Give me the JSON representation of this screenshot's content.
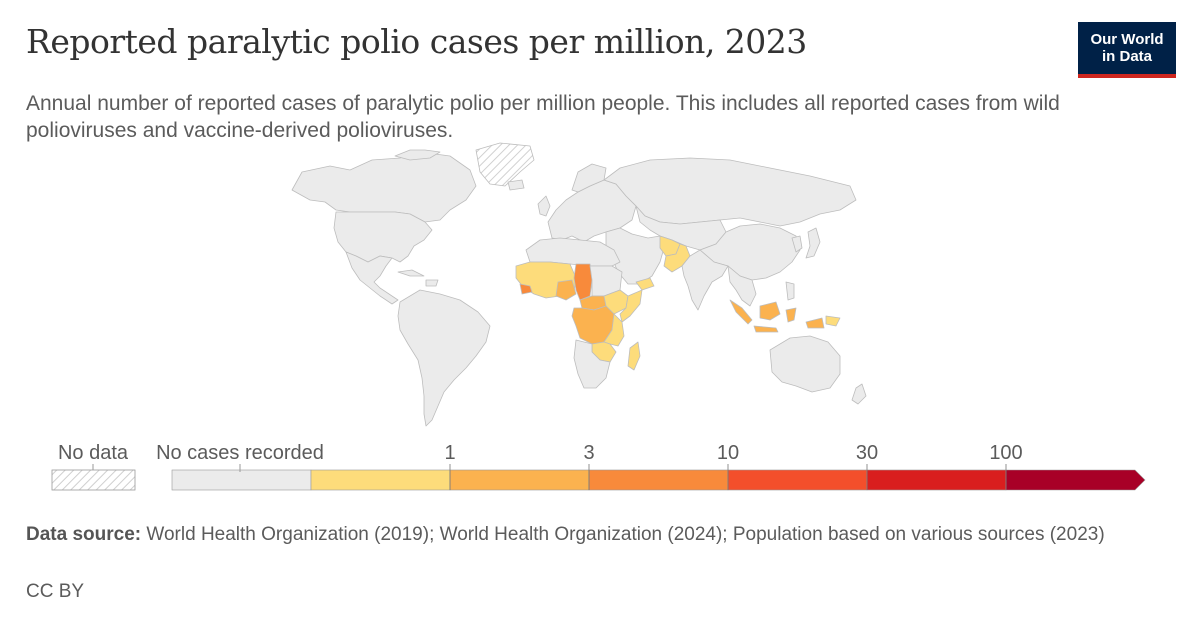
{
  "header": {
    "title": "Reported paralytic polio cases per million, 2023",
    "subtitle": "Annual number of reported cases of paralytic polio per million people. This includes all reported cases from wild polioviruses and vaccine-derived polioviruses."
  },
  "logo": {
    "line1": "Our World",
    "line2": "in Data",
    "bg_color": "#002147",
    "accent_color": "#ce261e"
  },
  "legend": {
    "no_data_label": "No data",
    "no_cases_label": "No cases recorded",
    "bins": [
      {
        "color": "#ebebeb"
      },
      {
        "color": "#fddc7b"
      },
      {
        "color": "#fbb24f"
      },
      {
        "color": "#f88a3b"
      },
      {
        "color": "#f34f2b"
      },
      {
        "color": "#d91e1e"
      },
      {
        "color": "#a80027"
      }
    ],
    "tick_labels": [
      "1",
      "3",
      "10",
      "30",
      "100"
    ]
  },
  "map_colors": {
    "ocean": "#ffffff",
    "land_no_cases": "#ebebeb",
    "border": "#bdbdbd",
    "no_data_hatch": "#d4d4d4"
  },
  "footer": {
    "source_label": "Data source:",
    "source_text": "World Health Organization (2019); World Health Organization (2024); Population based on various sources (2023)",
    "license": "CC BY"
  }
}
